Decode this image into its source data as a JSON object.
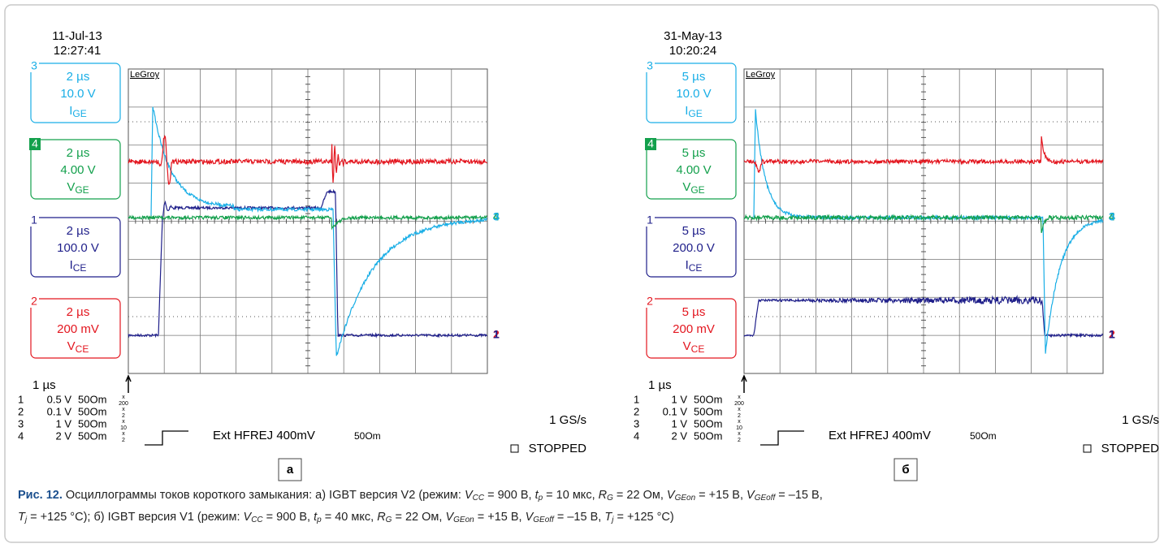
{
  "panels": [
    {
      "date": "11-Jul-13",
      "time": "12:27:41",
      "brand": "LeGroy",
      "channels": [
        {
          "number": "3",
          "timebase": "2 µs",
          "scale": "10.0 V",
          "label": "I",
          "subscript": "GE"
        },
        {
          "number": "4",
          "timebase": "2 µs",
          "scale": "4.00 V",
          "label": "V",
          "subscript": "GE"
        },
        {
          "number": "1",
          "timebase": "2 µs",
          "scale": "100.0 V",
          "label": "I",
          "subscript": "CE"
        },
        {
          "number": "2",
          "timebase": "2 µs",
          "scale": "200 mV",
          "label": "V",
          "subscript": "CE"
        }
      ],
      "markers": [
        "4",
        "3",
        "2",
        "1"
      ],
      "timebase": "1 µs",
      "settings": [
        {
          "ch": "1",
          "volts": "0.5 V",
          "imp": "50Om",
          "probe_top": "x",
          "probe_bottom": "200"
        },
        {
          "ch": "2",
          "volts": "0.1 V",
          "imp": "50Om",
          "probe_top": "x",
          "probe_bottom": "2"
        },
        {
          "ch": "3",
          "volts": "1 V",
          "imp": "50Om",
          "probe_top": "x",
          "probe_bottom": "10"
        },
        {
          "ch": "4",
          "volts": "2 V",
          "imp": "50Om",
          "probe_top": "x",
          "probe_bottom": "2"
        }
      ],
      "trigger": "Ext HFREJ 400mV",
      "trigger_imp": "50Om",
      "rate": "1 GS/s",
      "status": "STOPPED",
      "panel_label": "а"
    },
    {
      "date": "31-May-13",
      "time": "10:20:24",
      "brand": "LeGroy",
      "channels": [
        {
          "number": "3",
          "timebase": "5 µs",
          "scale": "10.0 V",
          "label": "I",
          "subscript": "GE"
        },
        {
          "number": "4",
          "timebase": "5 µs",
          "scale": "4.00 V",
          "label": "V",
          "subscript": "GE"
        },
        {
          "number": "1",
          "timebase": "5 µs",
          "scale": "200.0 V",
          "label": "I",
          "subscript": "CE"
        },
        {
          "number": "2",
          "timebase": "5 µs",
          "scale": "200 mV",
          "label": "V",
          "subscript": "CE"
        }
      ],
      "markers": [
        "4",
        "3",
        "2",
        "1"
      ],
      "timebase": "1 µs",
      "settings": [
        {
          "ch": "1",
          "volts": "1 V",
          "imp": "50Om",
          "probe_top": "x",
          "probe_bottom": "200"
        },
        {
          "ch": "2",
          "volts": "0.1 V",
          "imp": "50Om",
          "probe_top": "x",
          "probe_bottom": "2"
        },
        {
          "ch": "3",
          "volts": "1 V",
          "imp": "50Om",
          "probe_top": "x",
          "probe_bottom": "10"
        },
        {
          "ch": "4",
          "volts": "2 V",
          "imp": "50Om",
          "probe_top": "x",
          "probe_bottom": "2"
        }
      ],
      "trigger": "Ext HFREJ 400mV",
      "trigger_imp": "50Om",
      "rate": "1 GS/s",
      "status": "STOPPED",
      "panel_label": "б"
    }
  ],
  "caption": {
    "label": "Рис. 12.",
    "lines": [
      [
        {
          "text": " Осциллограммы токов короткого замыкания: а) IGBT версия V2 (режим: "
        },
        {
          "var": "V",
          "sub": "CC"
        },
        {
          "text": " = 900 В, "
        },
        {
          "var": "t",
          "sub": "p"
        },
        {
          "text": " = 10 мкс, "
        },
        {
          "var": "R",
          "sub": "G"
        },
        {
          "text": " = 22 Ом, "
        },
        {
          "var": "V",
          "sub": "GEon"
        },
        {
          "text": " = +15 В, "
        },
        {
          "var": "V",
          "sub": "GEoff"
        },
        {
          "text": " = –15 В,"
        }
      ],
      [
        {
          "var": "T",
          "sub": "j"
        },
        {
          "text": " = +125 °C); б) IGBT версия V1 (режим: "
        },
        {
          "var": "V",
          "sub": "CC"
        },
        {
          "text": " = 900 В, "
        },
        {
          "var": "t",
          "sub": "p"
        },
        {
          "text": " = 40 мкс, "
        },
        {
          "var": "R",
          "sub": "G"
        },
        {
          "text": " = 22 Ом, "
        },
        {
          "var": "V",
          "sub": "GEon"
        },
        {
          "text": " = +15 В, "
        },
        {
          "var": "V",
          "sub": "GEoff"
        },
        {
          "text": " = –15 В, "
        },
        {
          "var": "T",
          "sub": "j"
        },
        {
          "text": " = +125 °C)"
        }
      ]
    ]
  }
}
